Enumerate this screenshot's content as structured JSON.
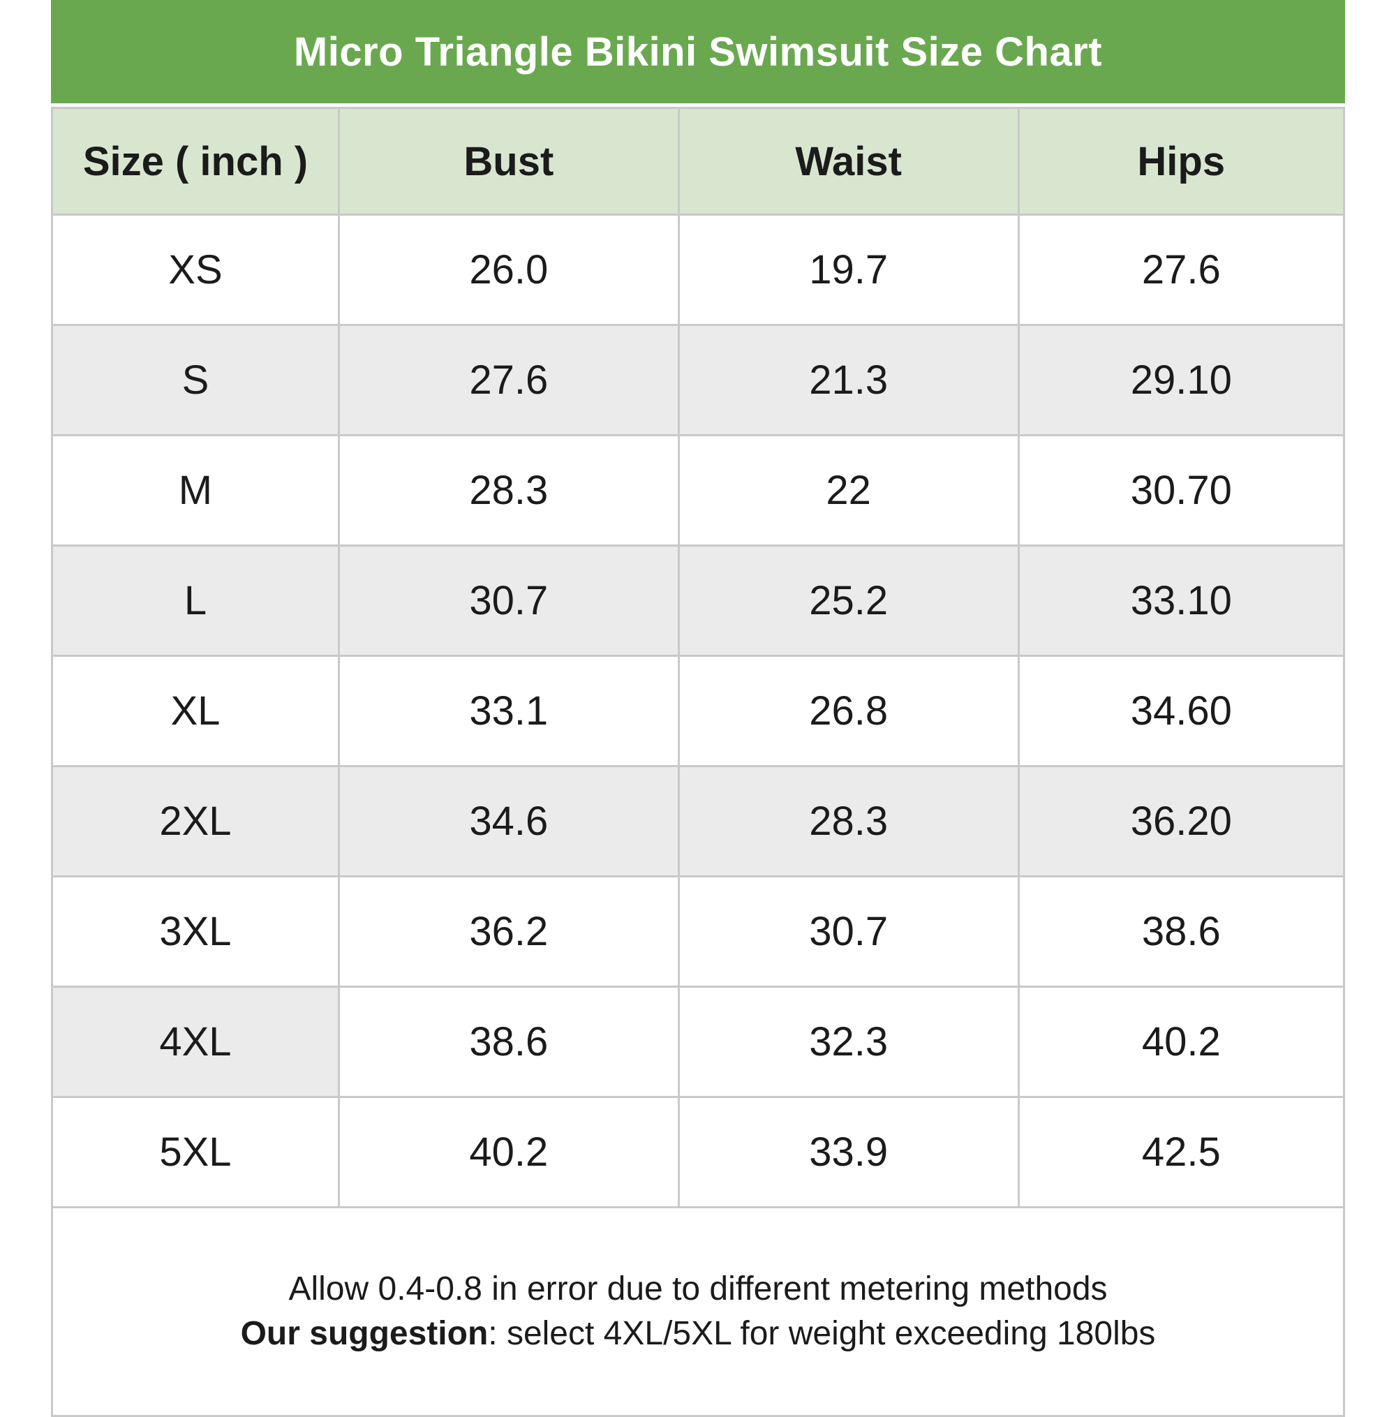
{
  "title": "Micro Triangle Bikini Swimsuit Size Chart",
  "table": {
    "columns": [
      "Size ( inch )",
      "Bust",
      "Waist",
      "Hips"
    ],
    "rows": [
      {
        "size": "XS",
        "bust": "26.0",
        "waist": "19.7",
        "hips": "27.6",
        "shading": "none"
      },
      {
        "size": "S",
        "bust": "27.6",
        "waist": "21.3",
        "hips": "29.10",
        "shading": "row"
      },
      {
        "size": "M",
        "bust": "28.3",
        "waist": "22",
        "hips": "30.70",
        "shading": "none"
      },
      {
        "size": "L",
        "bust": "30.7",
        "waist": "25.2",
        "hips": "33.10",
        "shading": "row"
      },
      {
        "size": "XL",
        "bust": "33.1",
        "waist": "26.8",
        "hips": "34.60",
        "shading": "none"
      },
      {
        "size": "2XL",
        "bust": "34.6",
        "waist": "28.3",
        "hips": "36.20",
        "shading": "row"
      },
      {
        "size": "3XL",
        "bust": "36.2",
        "waist": "30.7",
        "hips": "38.6",
        "shading": "none"
      },
      {
        "size": "4XL",
        "bust": "38.6",
        "waist": "32.3",
        "hips": "40.2",
        "shading": "size-cell"
      },
      {
        "size": "5XL",
        "bust": "40.2",
        "waist": "33.9",
        "hips": "42.5",
        "shading": "none"
      }
    ],
    "footer": {
      "line1": "Allow 0.4-0.8 in error due to different metering methods",
      "line2_bold": "Our suggestion",
      "line2_rest": ": select 4XL/5XL for weight exceeding 180lbs"
    }
  },
  "colors": {
    "header_bar_green": "#6aa84f",
    "column_header_green": "#d8e6d0",
    "row_shade_gray": "#ebebeb",
    "border_gray": "#c9c9c9",
    "title_text": "#ffffff",
    "body_text": "#1b1b1b"
  }
}
